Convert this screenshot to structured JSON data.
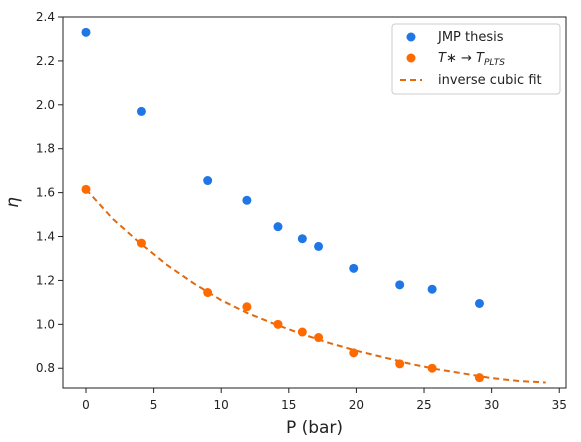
{
  "chart_data": {
    "type": "scatter",
    "xlabel": "P (bar)",
    "ylabel": "η",
    "xlim": [
      -1.7,
      35.5
    ],
    "ylim": [
      0.71,
      2.4
    ],
    "xticks": [
      0,
      5,
      10,
      15,
      20,
      25,
      30,
      35
    ],
    "yticks": [
      0.8,
      1.0,
      1.2,
      1.4,
      1.6,
      1.8,
      2.0,
      2.2,
      2.4
    ],
    "xtick_labels": [
      "0",
      "5",
      "10",
      "15",
      "20",
      "25",
      "30",
      "35"
    ],
    "ytick_labels": [
      "0.8",
      "1.0",
      "1.2",
      "1.4",
      "1.6",
      "1.8",
      "2.0",
      "2.2",
      "2.4"
    ],
    "grid": false,
    "legend_position": "top-right",
    "series": [
      {
        "name": "JMP thesis",
        "kind": "scatter",
        "color": "#1f77e6",
        "x": [
          0,
          4.1,
          9.0,
          11.9,
          14.2,
          16.0,
          17.2,
          19.8,
          23.2,
          25.6,
          29.1
        ],
        "y": [
          2.33,
          1.97,
          1.655,
          1.565,
          1.445,
          1.39,
          1.355,
          1.255,
          1.18,
          1.16,
          1.095
        ]
      },
      {
        "name_parts": [
          "T∗ → T",
          "PLTS"
        ],
        "kind": "scatter",
        "color": "#ff6a00",
        "x": [
          0,
          4.1,
          9.0,
          11.9,
          14.2,
          16.0,
          17.2,
          19.8,
          23.2,
          25.6,
          29.1
        ],
        "y": [
          1.615,
          1.37,
          1.145,
          1.08,
          1.0,
          0.965,
          0.94,
          0.87,
          0.82,
          0.8,
          0.757
        ]
      },
      {
        "name": "inverse cubic fit",
        "kind": "line",
        "style": "dashed",
        "color": "#e06a10",
        "x": [
          0,
          2,
          4,
          6,
          8,
          10,
          12,
          14,
          16,
          18,
          20,
          22,
          24,
          26,
          28,
          30,
          32,
          34
        ],
        "y": [
          1.615,
          1.48,
          1.37,
          1.27,
          1.185,
          1.11,
          1.05,
          1.0,
          0.955,
          0.915,
          0.88,
          0.85,
          0.82,
          0.795,
          0.775,
          0.755,
          0.742,
          0.735
        ]
      }
    ]
  }
}
